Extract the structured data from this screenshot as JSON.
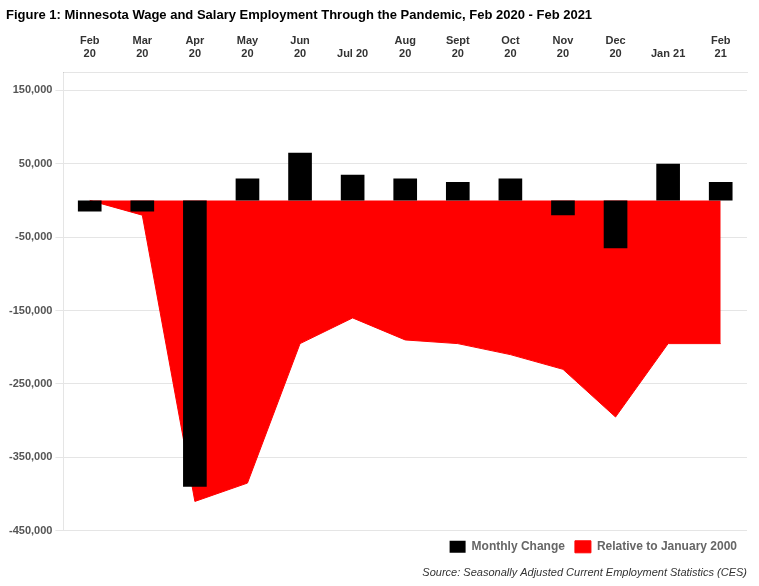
{
  "chart_data": {
    "type": "bar",
    "title": "Figure 1: Minnesota Wage and Salary Employment Through the Pandemic, Feb 2020 - Feb 2021",
    "categories": [
      "Feb\n20",
      "Mar\n20",
      "Apr\n20",
      "May\n20",
      "Jun\n20",
      "Jul 20",
      "Aug\n20",
      "Sept\n20",
      "Oct\n20",
      "Nov\n20",
      "Dec\n20",
      "Jan 21",
      "Feb\n21"
    ],
    "series": [
      {
        "name": "Relative to January 2000",
        "type": "area",
        "color": "#FF0000",
        "values": [
          0,
          -20000,
          -410000,
          -385000,
          -195000,
          -160000,
          -190000,
          -195000,
          -210000,
          -230000,
          -295000,
          -195000,
          -195000
        ]
      },
      {
        "name": "Monthly Change",
        "type": "bar",
        "color": "#000000",
        "values": [
          -15000,
          -15000,
          -390000,
          30000,
          65000,
          35000,
          30000,
          25000,
          30000,
          -20000,
          -65000,
          50000,
          25000
        ]
      }
    ],
    "ylim": [
      -450000,
      175000
    ],
    "yticks": [
      {
        "value": 150000,
        "label": "150,000"
      },
      {
        "value": 50000,
        "label": "50,000"
      },
      {
        "value": -50000,
        "label": "-50,000"
      },
      {
        "value": -150000,
        "label": "-150,000"
      },
      {
        "value": -250000,
        "label": "-250,000"
      },
      {
        "value": -350000,
        "label": "-350,000"
      },
      {
        "value": -450000,
        "label": "-450,000"
      }
    ],
    "grid": true,
    "legend": "lower right",
    "annotations": [
      "Source: Seasonally Adjusted Current Employment Statistics (CES)"
    ]
  }
}
